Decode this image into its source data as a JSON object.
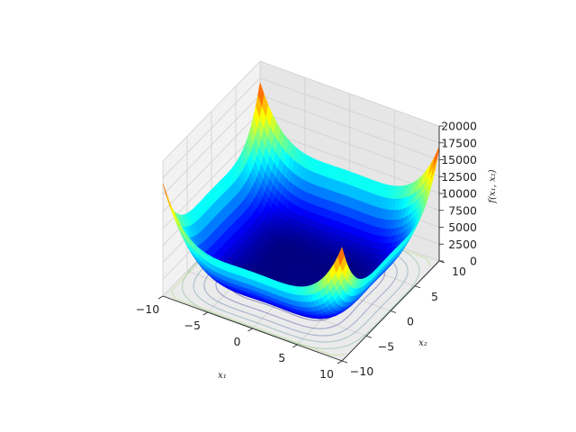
{
  "chart_data": {
    "type": "surface3d",
    "function": "Styblinski-Tang-like quartic bowl, f(x1,x2) = sum(x_i^4 - 16 x_i^2 + 5 x_i)",
    "xlabel": "x₁",
    "ylabel": "x₂",
    "zlabel": "f(x₁, x₂)",
    "xlim": [
      -10,
      10
    ],
    "ylim": [
      -10,
      10
    ],
    "zlim": [
      0,
      20000
    ],
    "x_ticks": [
      "−10",
      "−5",
      "0",
      "5",
      "10"
    ],
    "y_ticks": [
      "−10",
      "−5",
      "0",
      "5",
      "10"
    ],
    "z_ticks": [
      "0",
      "2500",
      "5000",
      "7500",
      "10000",
      "12500",
      "15000",
      "17500",
      "20000"
    ],
    "x_tick_values": [
      -10,
      -5,
      0,
      5,
      10
    ],
    "y_tick_values": [
      -10,
      -5,
      0,
      5,
      10
    ],
    "z_tick_values": [
      0,
      2500,
      5000,
      7500,
      10000,
      12500,
      15000,
      17500,
      20000
    ],
    "colormap": "jet",
    "contour_on_floor": true,
    "grid": true,
    "approx_min_value": -78,
    "approx_corner_max_value": 20000
  }
}
